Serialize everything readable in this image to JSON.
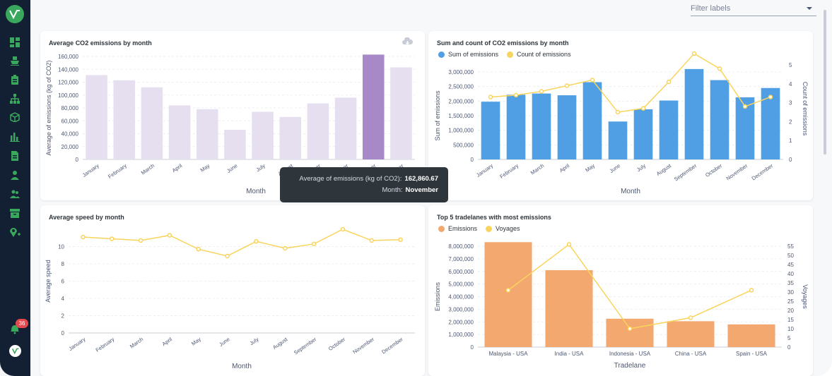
{
  "filter": {
    "placeholder": "Filter labels"
  },
  "sidebar": {
    "logo": "v-logo-icon",
    "items": [
      "dashboard-icon",
      "ship-icon",
      "clipboard-icon",
      "hierarchy-icon",
      "box-icon",
      "bar-chart-icon",
      "document-icon",
      "user-icon",
      "users-icon",
      "archive-icon",
      "location-add-icon"
    ],
    "notifications": "36",
    "bottom_logo": "v-logo-icon"
  },
  "tooltip": {
    "label1": "Average of emissions (kg of CO2):",
    "value1": "162,860.67",
    "label2": "Month:",
    "value2": "November"
  },
  "colors": {
    "bar_light": "#e6dff0",
    "bar_active": "#a889c8",
    "blue": "#509ee3",
    "yellow": "#f9d45c",
    "orange": "#f2a86f"
  },
  "chart_data": [
    {
      "type": "bar",
      "title": "Average CO2 emissions by month",
      "xlabel": "Month",
      "ylabel": "Average of emissions (kg of CO2)",
      "categories": [
        "January",
        "February",
        "March",
        "April",
        "May",
        "June",
        "July",
        "August",
        "September",
        "October",
        "November",
        "December"
      ],
      "values": [
        131000,
        123000,
        112000,
        84000,
        78000,
        46000,
        74000,
        66000,
        87000,
        96000,
        162860.67,
        143000
      ],
      "ylim": [
        0,
        160000
      ],
      "yticks": [
        "0",
        "20,000",
        "40,000",
        "60,000",
        "80,000",
        "100,000",
        "120,000",
        "140,000",
        "160,000"
      ],
      "highlighted": "November"
    },
    {
      "type": "bar",
      "title": "Sum and count of CO2 emissions by month",
      "xlabel": "Month",
      "ylabel": "Sum of emissions",
      "y2label": "Count of emissions",
      "categories": [
        "January",
        "February",
        "March",
        "April",
        "May",
        "June",
        "July",
        "August",
        "September",
        "October",
        "November",
        "December"
      ],
      "series": [
        {
          "name": "Sum of emissions",
          "kind": "bar",
          "values": [
            1980000,
            2220000,
            2260000,
            2200000,
            2650000,
            1300000,
            1720000,
            2020000,
            3100000,
            2720000,
            2130000,
            2450000
          ]
        },
        {
          "name": "Count of emissions",
          "kind": "line",
          "values": [
            3.3,
            3.4,
            3.6,
            3.9,
            4.2,
            2.5,
            2.7,
            4.1,
            5.6,
            4.8,
            2.8,
            3.3
          ]
        }
      ],
      "ylim": [
        0,
        3000000
      ],
      "yticks": [
        "0",
        "500,000",
        "1,000,000",
        "1,500,000",
        "2,000,000",
        "2,500,000",
        "3,000,000"
      ],
      "y2lim": [
        0,
        5
      ],
      "y2ticks": [
        "0",
        "1",
        "2",
        "3",
        "4",
        "5"
      ]
    },
    {
      "type": "line",
      "title": "Average speed by month",
      "xlabel": "Month",
      "ylabel": "Average speed",
      "categories": [
        "January",
        "February",
        "March",
        "April",
        "May",
        "June",
        "July",
        "August",
        "September",
        "October",
        "November",
        "December"
      ],
      "values": [
        11.1,
        10.9,
        10.7,
        11.3,
        9.7,
        8.9,
        10.6,
        9.8,
        10.3,
        12.0,
        10.7,
        10.8
      ],
      "ylim": [
        0,
        12
      ],
      "yticks": [
        "0",
        "2",
        "4",
        "6",
        "8",
        "10"
      ]
    },
    {
      "type": "bar",
      "title": "Top 5 tradelanes with most emissions",
      "xlabel": "Tradelane",
      "ylabel": "Emissions",
      "y2label": "Voyages",
      "categories": [
        "Malaysia - USA",
        "India - USA",
        "Indonesia - USA",
        "China - USA",
        "Spain - USA"
      ],
      "series": [
        {
          "name": "Emissions",
          "kind": "bar",
          "values": [
            8350000,
            6100000,
            2250000,
            2050000,
            1800000
          ]
        },
        {
          "name": "Voyages",
          "kind": "line",
          "values": [
            31,
            56,
            10,
            16,
            31
          ]
        }
      ],
      "ylim": [
        0,
        8000000
      ],
      "yticks": [
        "0",
        "1,000,000",
        "2,000,000",
        "3,000,000",
        "4,000,000",
        "5,000,000",
        "6,000,000",
        "7,000,000",
        "8,000,000"
      ],
      "y2lim": [
        0,
        55
      ],
      "y2ticks": [
        "0",
        "5",
        "10",
        "15",
        "20",
        "25",
        "30",
        "35",
        "40",
        "45",
        "50",
        "55"
      ]
    }
  ]
}
